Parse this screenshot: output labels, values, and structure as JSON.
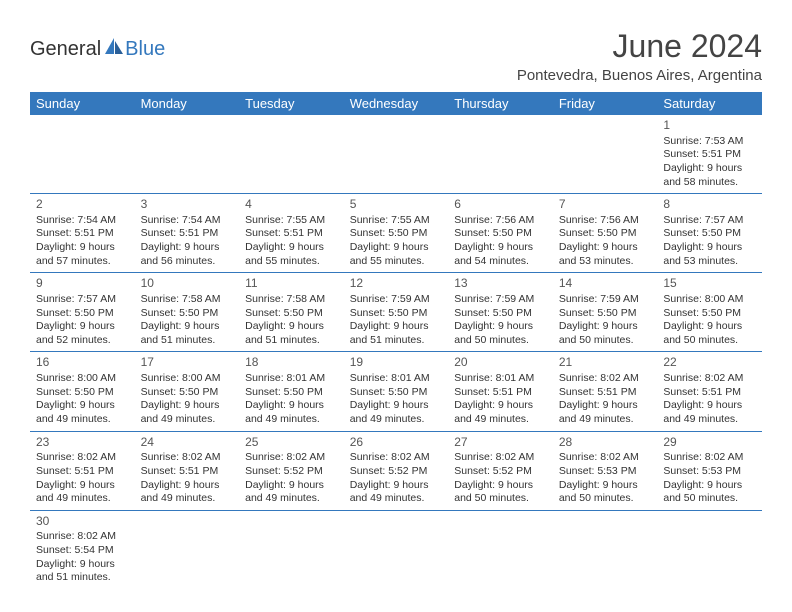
{
  "logo": {
    "general": "General",
    "blue": "Blue"
  },
  "title": "June 2024",
  "location": "Pontevedra, Buenos Aires, Argentina",
  "colors": {
    "header_bg": "#3478bd",
    "header_text": "#ffffff",
    "row_divider": "#3478bd",
    "text": "#333333"
  },
  "day_headers": [
    "Sunday",
    "Monday",
    "Tuesday",
    "Wednesday",
    "Thursday",
    "Friday",
    "Saturday"
  ],
  "weeks": [
    [
      null,
      null,
      null,
      null,
      null,
      null,
      {
        "n": "1",
        "sr": "Sunrise: 7:53 AM",
        "ss": "Sunset: 5:51 PM",
        "d1": "Daylight: 9 hours",
        "d2": "and 58 minutes."
      }
    ],
    [
      {
        "n": "2",
        "sr": "Sunrise: 7:54 AM",
        "ss": "Sunset: 5:51 PM",
        "d1": "Daylight: 9 hours",
        "d2": "and 57 minutes."
      },
      {
        "n": "3",
        "sr": "Sunrise: 7:54 AM",
        "ss": "Sunset: 5:51 PM",
        "d1": "Daylight: 9 hours",
        "d2": "and 56 minutes."
      },
      {
        "n": "4",
        "sr": "Sunrise: 7:55 AM",
        "ss": "Sunset: 5:51 PM",
        "d1": "Daylight: 9 hours",
        "d2": "and 55 minutes."
      },
      {
        "n": "5",
        "sr": "Sunrise: 7:55 AM",
        "ss": "Sunset: 5:50 PM",
        "d1": "Daylight: 9 hours",
        "d2": "and 55 minutes."
      },
      {
        "n": "6",
        "sr": "Sunrise: 7:56 AM",
        "ss": "Sunset: 5:50 PM",
        "d1": "Daylight: 9 hours",
        "d2": "and 54 minutes."
      },
      {
        "n": "7",
        "sr": "Sunrise: 7:56 AM",
        "ss": "Sunset: 5:50 PM",
        "d1": "Daylight: 9 hours",
        "d2": "and 53 minutes."
      },
      {
        "n": "8",
        "sr": "Sunrise: 7:57 AM",
        "ss": "Sunset: 5:50 PM",
        "d1": "Daylight: 9 hours",
        "d2": "and 53 minutes."
      }
    ],
    [
      {
        "n": "9",
        "sr": "Sunrise: 7:57 AM",
        "ss": "Sunset: 5:50 PM",
        "d1": "Daylight: 9 hours",
        "d2": "and 52 minutes."
      },
      {
        "n": "10",
        "sr": "Sunrise: 7:58 AM",
        "ss": "Sunset: 5:50 PM",
        "d1": "Daylight: 9 hours",
        "d2": "and 51 minutes."
      },
      {
        "n": "11",
        "sr": "Sunrise: 7:58 AM",
        "ss": "Sunset: 5:50 PM",
        "d1": "Daylight: 9 hours",
        "d2": "and 51 minutes."
      },
      {
        "n": "12",
        "sr": "Sunrise: 7:59 AM",
        "ss": "Sunset: 5:50 PM",
        "d1": "Daylight: 9 hours",
        "d2": "and 51 minutes."
      },
      {
        "n": "13",
        "sr": "Sunrise: 7:59 AM",
        "ss": "Sunset: 5:50 PM",
        "d1": "Daylight: 9 hours",
        "d2": "and 50 minutes."
      },
      {
        "n": "14",
        "sr": "Sunrise: 7:59 AM",
        "ss": "Sunset: 5:50 PM",
        "d1": "Daylight: 9 hours",
        "d2": "and 50 minutes."
      },
      {
        "n": "15",
        "sr": "Sunrise: 8:00 AM",
        "ss": "Sunset: 5:50 PM",
        "d1": "Daylight: 9 hours",
        "d2": "and 50 minutes."
      }
    ],
    [
      {
        "n": "16",
        "sr": "Sunrise: 8:00 AM",
        "ss": "Sunset: 5:50 PM",
        "d1": "Daylight: 9 hours",
        "d2": "and 49 minutes."
      },
      {
        "n": "17",
        "sr": "Sunrise: 8:00 AM",
        "ss": "Sunset: 5:50 PM",
        "d1": "Daylight: 9 hours",
        "d2": "and 49 minutes."
      },
      {
        "n": "18",
        "sr": "Sunrise: 8:01 AM",
        "ss": "Sunset: 5:50 PM",
        "d1": "Daylight: 9 hours",
        "d2": "and 49 minutes."
      },
      {
        "n": "19",
        "sr": "Sunrise: 8:01 AM",
        "ss": "Sunset: 5:50 PM",
        "d1": "Daylight: 9 hours",
        "d2": "and 49 minutes."
      },
      {
        "n": "20",
        "sr": "Sunrise: 8:01 AM",
        "ss": "Sunset: 5:51 PM",
        "d1": "Daylight: 9 hours",
        "d2": "and 49 minutes."
      },
      {
        "n": "21",
        "sr": "Sunrise: 8:02 AM",
        "ss": "Sunset: 5:51 PM",
        "d1": "Daylight: 9 hours",
        "d2": "and 49 minutes."
      },
      {
        "n": "22",
        "sr": "Sunrise: 8:02 AM",
        "ss": "Sunset: 5:51 PM",
        "d1": "Daylight: 9 hours",
        "d2": "and 49 minutes."
      }
    ],
    [
      {
        "n": "23",
        "sr": "Sunrise: 8:02 AM",
        "ss": "Sunset: 5:51 PM",
        "d1": "Daylight: 9 hours",
        "d2": "and 49 minutes."
      },
      {
        "n": "24",
        "sr": "Sunrise: 8:02 AM",
        "ss": "Sunset: 5:51 PM",
        "d1": "Daylight: 9 hours",
        "d2": "and 49 minutes."
      },
      {
        "n": "25",
        "sr": "Sunrise: 8:02 AM",
        "ss": "Sunset: 5:52 PM",
        "d1": "Daylight: 9 hours",
        "d2": "and 49 minutes."
      },
      {
        "n": "26",
        "sr": "Sunrise: 8:02 AM",
        "ss": "Sunset: 5:52 PM",
        "d1": "Daylight: 9 hours",
        "d2": "and 49 minutes."
      },
      {
        "n": "27",
        "sr": "Sunrise: 8:02 AM",
        "ss": "Sunset: 5:52 PM",
        "d1": "Daylight: 9 hours",
        "d2": "and 50 minutes."
      },
      {
        "n": "28",
        "sr": "Sunrise: 8:02 AM",
        "ss": "Sunset: 5:53 PM",
        "d1": "Daylight: 9 hours",
        "d2": "and 50 minutes."
      },
      {
        "n": "29",
        "sr": "Sunrise: 8:02 AM",
        "ss": "Sunset: 5:53 PM",
        "d1": "Daylight: 9 hours",
        "d2": "and 50 minutes."
      }
    ],
    [
      {
        "n": "30",
        "sr": "Sunrise: 8:02 AM",
        "ss": "Sunset: 5:54 PM",
        "d1": "Daylight: 9 hours",
        "d2": "and 51 minutes."
      },
      null,
      null,
      null,
      null,
      null,
      null
    ]
  ]
}
